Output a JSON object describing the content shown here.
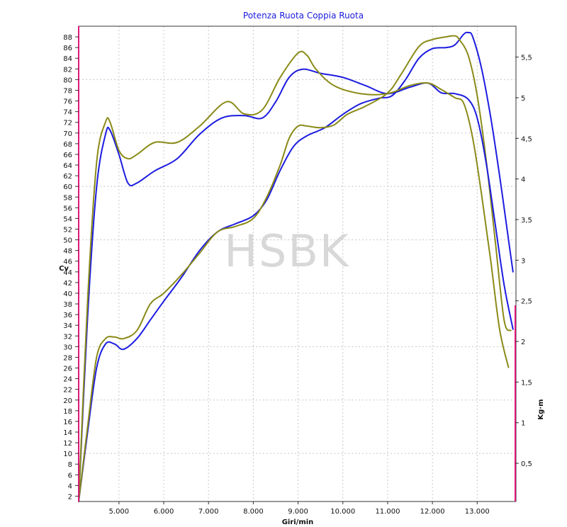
{
  "chart_data": {
    "type": "line",
    "title": "Potenza Ruota Coppia Ruota",
    "xlabel": "Giri/min",
    "ylabel_left": "Cv",
    "ylabel_right": "Kg·m",
    "watermark": "HSBK",
    "grid": true,
    "xlim": [
      4100,
      13850
    ],
    "ylim_left": [
      1,
      90
    ],
    "ylim_right": [
      0.03,
      5.88
    ],
    "x_ticks": [
      5000,
      6000,
      7000,
      8000,
      9000,
      10000,
      11000,
      12000,
      13000
    ],
    "x_tick_labels": [
      "5.000",
      "6.000",
      "7.000",
      "8.000",
      "9.000",
      "10.000",
      "11.000",
      "12.000",
      "13.000"
    ],
    "y_left_ticks": [
      2,
      4,
      6,
      8,
      10,
      12,
      14,
      16,
      18,
      20,
      22,
      24,
      26,
      28,
      30,
      32,
      34,
      36,
      38,
      40,
      42,
      44,
      46,
      48,
      50,
      52,
      54,
      56,
      58,
      60,
      62,
      64,
      66,
      68,
      70,
      72,
      74,
      76,
      78,
      80,
      82,
      84,
      86,
      88
    ],
    "y_left_tick_labels": [
      "2",
      "4",
      "6",
      "8",
      "10",
      "12",
      "14",
      "16",
      "18",
      "20",
      "22",
      "24",
      "26",
      "28",
      "30",
      "32",
      "34",
      "36",
      "38",
      "40",
      "42",
      "44",
      "46",
      "48",
      "50",
      "52",
      "54",
      "56",
      "58",
      "60",
      "62",
      "64",
      "66",
      "68",
      "70",
      "72",
      "74",
      "76",
      "78",
      "80",
      "82",
      "84",
      "86",
      "88"
    ],
    "y_right_ticks": [
      0.5,
      1,
      1.5,
      2,
      2.5,
      3,
      3.5,
      4,
      4.5,
      5,
      5.5
    ],
    "y_right_tick_labels": [
      "0,5",
      "1",
      "1,5",
      "2",
      "2,5",
      "3",
      "3,5",
      "4",
      "4,5",
      "5",
      "5,5"
    ],
    "colors": {
      "blue": "#1c1ce0",
      "olive": "#8a8a18",
      "axis": "#e0177a",
      "frame": "#333333"
    },
    "series": [
      {
        "axis": "left",
        "color": "#1c1ce0",
        "x": [
          4100,
          4300,
          4500,
          4700,
          4900,
          5100,
          5400,
          5700,
          6000,
          6400,
          6800,
          7200,
          7600,
          8000,
          8300,
          8600,
          8900,
          9200,
          9600,
          10000,
          10400,
          10800,
          11100,
          11400,
          11700,
          12000,
          12300,
          12500,
          12700,
          12800,
          12900,
          13100,
          13300,
          13500,
          13700,
          13800
        ],
        "y": [
          1,
          14,
          26,
          30.5,
          30.5,
          29.5,
          31.5,
          35,
          38.5,
          43,
          48,
          51.5,
          53,
          54.5,
          57.5,
          63,
          67.5,
          69.5,
          71,
          73.5,
          75.5,
          76.5,
          77,
          80,
          84,
          85.8,
          86,
          86.5,
          88.5,
          88.8,
          88,
          82,
          73,
          62,
          50,
          44
        ]
      },
      {
        "axis": "left",
        "color": "#8a8a18",
        "x": [
          4100,
          4300,
          4500,
          4700,
          4900,
          5100,
          5400,
          5700,
          6000,
          6400,
          6800,
          7200,
          7600,
          8000,
          8300,
          8600,
          8800,
          9000,
          9200,
          9500,
          9800,
          10100,
          10500,
          11000,
          11300,
          11700,
          12000,
          12300,
          12500,
          12600,
          12800,
          13000,
          13200,
          13400,
          13600,
          13750
        ],
        "y": [
          1,
          15,
          28,
          31.5,
          31.8,
          31.5,
          33,
          38,
          40,
          43.5,
          47.5,
          51.5,
          52.5,
          54,
          58,
          64,
          69,
          71.3,
          71.3,
          71,
          71.5,
          73.5,
          75,
          77.5,
          81,
          86.2,
          87.5,
          88,
          88.2,
          87.5,
          84.5,
          77,
          65,
          50,
          35,
          33
        ]
      },
      {
        "axis": "right",
        "color": "#1c1ce0",
        "x": [
          4100,
          4300,
          4500,
          4700,
          4800,
          5000,
          5200,
          5400,
          5800,
          6300,
          6800,
          7300,
          7800,
          8200,
          8500,
          8800,
          9100,
          9500,
          10000,
          10500,
          11000,
          11500,
          11900,
          12200,
          12500,
          12800,
          13000,
          13200,
          13400,
          13600,
          13800
        ],
        "y": [
          0.03,
          2.3,
          3.9,
          4.55,
          4.6,
          4.3,
          3.95,
          3.95,
          4.1,
          4.25,
          4.55,
          4.75,
          4.78,
          4.75,
          4.95,
          5.25,
          5.35,
          5.3,
          5.25,
          5.15,
          5.05,
          5.13,
          5.18,
          5.06,
          5.05,
          4.98,
          4.75,
          4.2,
          3.45,
          2.7,
          2.15
        ]
      },
      {
        "axis": "right",
        "color": "#8a8a18",
        "x": [
          4100,
          4300,
          4500,
          4700,
          4800,
          5000,
          5200,
          5400,
          5800,
          6300,
          6800,
          7400,
          7800,
          8200,
          8600,
          9000,
          9200,
          9400,
          9800,
          10400,
          11000,
          11500,
          11900,
          12200,
          12500,
          12700,
          12900,
          13100,
          13300,
          13500,
          13700
        ],
        "y": [
          0.03,
          2.5,
          4.2,
          4.7,
          4.7,
          4.35,
          4.25,
          4.3,
          4.45,
          4.45,
          4.65,
          4.95,
          4.8,
          4.85,
          5.25,
          5.55,
          5.52,
          5.35,
          5.15,
          5.05,
          5.05,
          5.15,
          5.18,
          5.1,
          5.0,
          4.93,
          4.5,
          3.8,
          3.0,
          2.15,
          1.68
        ]
      }
    ]
  }
}
